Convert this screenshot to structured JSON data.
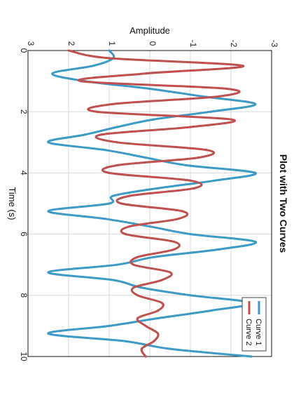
{
  "chart_data": {
    "type": "line",
    "title": "Plot with Two Curves",
    "xlabel": "Time (s)",
    "ylabel": "Amplitude",
    "xlim": [
      0,
      10
    ],
    "ylim": [
      -3,
      3
    ],
    "x_ticks": [
      "0",
      "2",
      "4",
      "6",
      "8",
      "10"
    ],
    "y_ticks": [
      "-3",
      "-2",
      "-1",
      "0",
      "1",
      "2",
      "3"
    ],
    "grid": true,
    "legend_position": "top-right",
    "orientation": "rotated 90 degrees clockwise",
    "x": [
      0.0,
      0.25,
      0.5,
      0.75,
      1.0,
      1.25,
      1.5,
      1.75,
      2.0,
      2.25,
      2.5,
      2.75,
      3.0,
      3.25,
      3.5,
      3.75,
      4.0,
      4.25,
      4.5,
      4.75,
      5.0,
      5.25,
      5.5,
      5.75,
      6.0,
      6.25,
      6.5,
      6.75,
      7.0,
      7.25,
      7.5,
      7.75,
      8.0,
      8.25,
      8.5,
      8.75,
      9.0,
      9.25,
      9.5,
      9.75,
      10.0
    ],
    "series": [
      {
        "name": "Curve 1",
        "color": "#3b9ac6",
        "values": [
          1.0,
          0.9,
          1.4,
          2.4,
          1.6,
          0.0,
          -1.3,
          -2.6,
          -1.5,
          -0.1,
          0.8,
          1.6,
          2.5,
          1.1,
          0.1,
          -0.9,
          -2.6,
          -1.6,
          -0.2,
          0.9,
          1.0,
          2.5,
          1.1,
          0.0,
          -1.0,
          -2.6,
          -1.7,
          -0.1,
          0.8,
          2.5,
          0.9,
          0.2,
          -1.0,
          -2.5,
          -1.5,
          -0.2,
          1.0,
          2.5,
          0.6,
          -0.5,
          -2.5
        ]
      },
      {
        "name": "Curve 2",
        "color": "#c0504d",
        "values": [
          2.0,
          1.0,
          -2.3,
          0.1,
          1.7,
          -1.9,
          -1.7,
          0.9,
          1.3,
          -2.0,
          -1.0,
          1.2,
          0.8,
          -1.4,
          -1.2,
          0.8,
          1.0,
          -1.0,
          -1.1,
          0.5,
          0.7,
          -0.8,
          -0.7,
          0.5,
          0.6,
          -0.6,
          -0.6,
          0.3,
          0.4,
          -0.5,
          -0.3,
          0.4,
          0.3,
          -0.3,
          -0.2,
          0.3,
          0.1,
          -0.2,
          -0.1,
          0.2,
          0.1
        ]
      }
    ]
  }
}
